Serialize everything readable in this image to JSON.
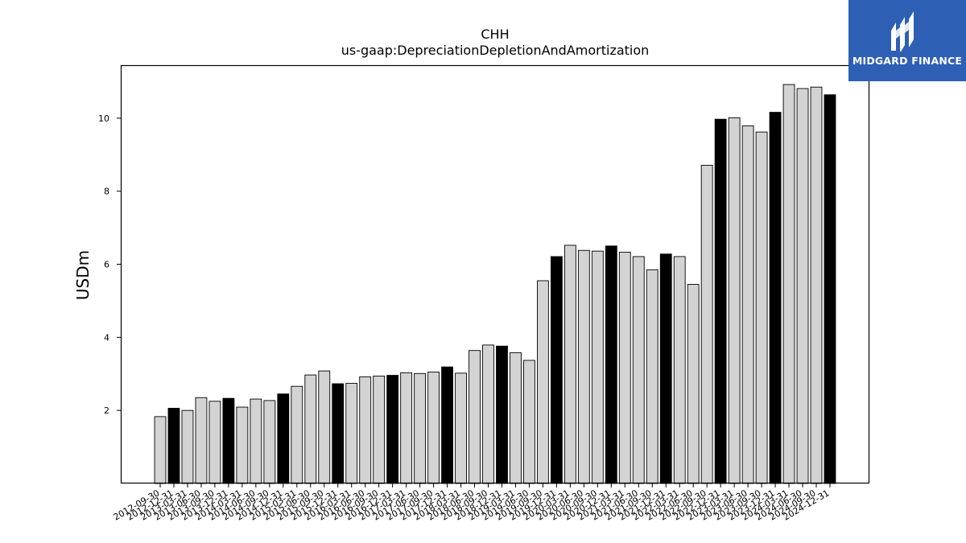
{
  "chart_data": {
    "type": "bar",
    "title": "CHH",
    "subtitle": "us-gaap:DepreciationDepletionAndAmortization",
    "xlabel": "",
    "ylabel": "USDm",
    "ylim": [
      0,
      11.45
    ],
    "yticks": [
      2,
      4,
      6,
      8,
      10
    ],
    "grid": false,
    "colors": {
      "fill_default": "#d3d3d3",
      "fill_highlight": "#000000",
      "edge": "#000000"
    },
    "categories": [
      "2012-09-30",
      "2012-12-31",
      "2013-03-31",
      "2013-06-30",
      "2013-09-30",
      "2013-12-31",
      "2014-03-31",
      "2014-06-30",
      "2014-09-30",
      "2014-12-31",
      "2015-03-31",
      "2015-06-30",
      "2015-09-30",
      "2015-12-31",
      "2016-03-31",
      "2016-06-30",
      "2016-09-30",
      "2016-12-31",
      "2017-03-31",
      "2017-06-30",
      "2017-09-30",
      "2017-12-31",
      "2018-03-31",
      "2018-06-30",
      "2018-09-30",
      "2018-12-31",
      "2019-03-31",
      "2019-06-30",
      "2019-09-30",
      "2019-12-31",
      "2020-03-31",
      "2020-06-30",
      "2020-09-30",
      "2020-12-31",
      "2021-03-31",
      "2021-06-30",
      "2021-09-30",
      "2021-12-31",
      "2022-03-31",
      "2022-06-30",
      "2022-09-30",
      "2022-12-31",
      "2023-03-31",
      "2023-06-30",
      "2023-09-30",
      "2023-12-31",
      "2024-03-31",
      "2024-06-30",
      "2024-09-30",
      "2024-12-31"
    ],
    "values": [
      1.83,
      2.06,
      2.0,
      2.35,
      2.25,
      2.33,
      2.09,
      2.31,
      2.27,
      2.45,
      2.66,
      2.97,
      3.08,
      2.73,
      2.74,
      2.92,
      2.94,
      2.96,
      3.03,
      3.01,
      3.05,
      3.19,
      3.02,
      3.64,
      3.79,
      3.76,
      3.58,
      3.37,
      5.55,
      6.21,
      6.52,
      6.38,
      6.36,
      6.5,
      6.33,
      6.21,
      5.85,
      6.28,
      6.21,
      5.45,
      8.71,
      9.97,
      10.01,
      9.79,
      9.62,
      10.16,
      10.92,
      10.81,
      10.85,
      10.64
    ],
    "highlighted": [
      false,
      true,
      false,
      false,
      false,
      true,
      false,
      false,
      false,
      true,
      false,
      false,
      false,
      true,
      false,
      false,
      false,
      true,
      false,
      false,
      false,
      true,
      false,
      false,
      false,
      true,
      false,
      false,
      false,
      true,
      false,
      false,
      false,
      true,
      false,
      false,
      false,
      true,
      false,
      false,
      false,
      true,
      false,
      false,
      false,
      true,
      false,
      false,
      false,
      true
    ]
  },
  "brand": {
    "name": "MIDGARD FINANCE",
    "logo_icon": "midgard-logo-icon",
    "background": "#2d5fb5"
  }
}
